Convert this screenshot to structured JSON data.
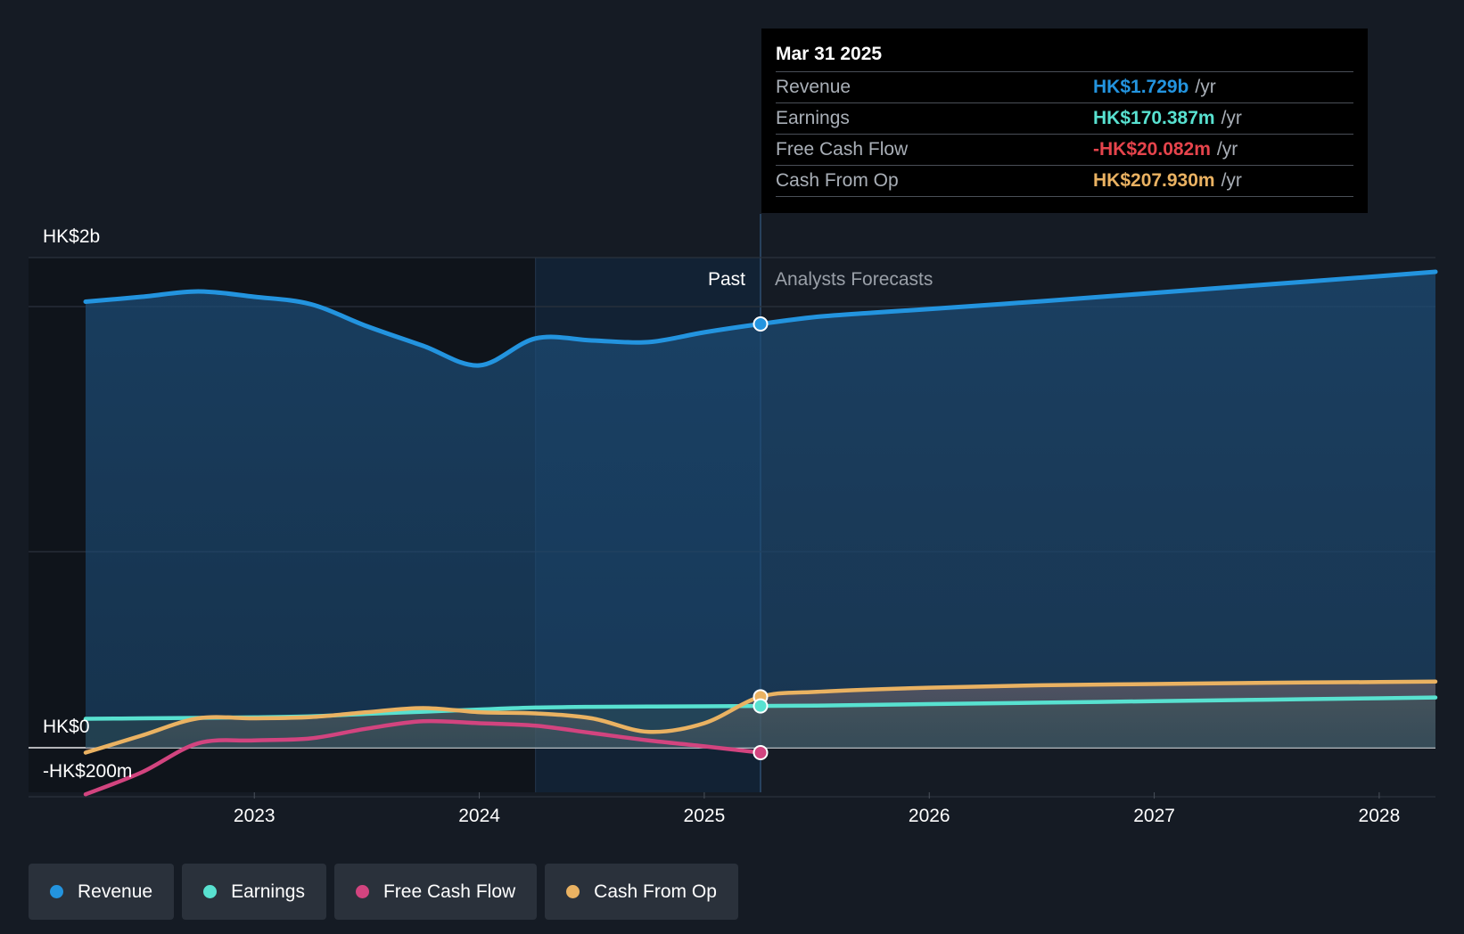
{
  "chart_data": {
    "type": "line",
    "x_unit": "year",
    "x_ticks": [
      "2023",
      "2024",
      "2025",
      "2026",
      "2027",
      "2028"
    ],
    "y_labels": {
      "top": "HK$2b",
      "zero": "HK$0",
      "bottom": "-HK$200m"
    },
    "y_gridlines_millions": [
      2000,
      1800,
      800,
      0,
      -200
    ],
    "y_range_millions": [
      -200,
      2200
    ],
    "regions": {
      "past_label": "Past",
      "forecast_label": "Analysts Forecasts"
    },
    "series": [
      {
        "name": "Revenue",
        "color": "#2394df",
        "points": [
          [
            2022.25,
            1820
          ],
          [
            2022.5,
            1840
          ],
          [
            2022.75,
            1862
          ],
          [
            2023.0,
            1840
          ],
          [
            2023.25,
            1810
          ],
          [
            2023.5,
            1720
          ],
          [
            2023.75,
            1640
          ],
          [
            2024.0,
            1560
          ],
          [
            2024.25,
            1670
          ],
          [
            2024.5,
            1662
          ],
          [
            2024.75,
            1655
          ],
          [
            2025.0,
            1695
          ],
          [
            2025.25,
            1729
          ],
          [
            2025.5,
            1758
          ],
          [
            2025.75,
            1775
          ],
          [
            2026.0,
            1790
          ],
          [
            2026.5,
            1822
          ],
          [
            2027.0,
            1856
          ],
          [
            2027.5,
            1890
          ],
          [
            2028.0,
            1924
          ],
          [
            2028.25,
            1942
          ]
        ]
      },
      {
        "name": "Earnings",
        "color": "#58e1d0",
        "points": [
          [
            2022.25,
            118
          ],
          [
            2022.5,
            120
          ],
          [
            2022.75,
            122
          ],
          [
            2023.0,
            124
          ],
          [
            2023.25,
            128
          ],
          [
            2023.5,
            138
          ],
          [
            2023.75,
            147
          ],
          [
            2024.0,
            156
          ],
          [
            2024.25,
            164
          ],
          [
            2024.5,
            167
          ],
          [
            2024.75,
            168
          ],
          [
            2025.0,
            169
          ],
          [
            2025.25,
            170.387
          ],
          [
            2025.5,
            172
          ],
          [
            2026.0,
            178
          ],
          [
            2026.5,
            184
          ],
          [
            2027.0,
            190
          ],
          [
            2027.5,
            196
          ],
          [
            2028.0,
            202
          ],
          [
            2028.25,
            205
          ]
        ]
      },
      {
        "name": "Free Cash Flow",
        "color": "#d2447f",
        "points": [
          [
            2022.25,
            -190
          ],
          [
            2022.5,
            -100
          ],
          [
            2022.75,
            18
          ],
          [
            2023.0,
            30
          ],
          [
            2023.25,
            38
          ],
          [
            2023.5,
            78
          ],
          [
            2023.75,
            108
          ],
          [
            2024.0,
            100
          ],
          [
            2024.25,
            90
          ],
          [
            2024.5,
            60
          ],
          [
            2024.75,
            30
          ],
          [
            2025.0,
            6
          ],
          [
            2025.25,
            -20.082
          ]
        ]
      },
      {
        "name": "Cash From Op",
        "color": "#eab262",
        "points": [
          [
            2022.25,
            -20
          ],
          [
            2022.5,
            50
          ],
          [
            2022.75,
            120
          ],
          [
            2023.0,
            120
          ],
          [
            2023.25,
            125
          ],
          [
            2023.5,
            145
          ],
          [
            2023.75,
            162
          ],
          [
            2024.0,
            145
          ],
          [
            2024.25,
            140
          ],
          [
            2024.5,
            120
          ],
          [
            2024.75,
            65
          ],
          [
            2025.0,
            100
          ],
          [
            2025.25,
            207.93
          ],
          [
            2025.5,
            228
          ],
          [
            2026.0,
            245
          ],
          [
            2026.5,
            255
          ],
          [
            2027.0,
            260
          ],
          [
            2027.5,
            265
          ],
          [
            2028.0,
            268
          ],
          [
            2028.25,
            270
          ]
        ]
      }
    ],
    "highlight_date": 2025.25,
    "shaded_past_range": [
      2024.25,
      2025.25
    ]
  },
  "tooltip": {
    "date": "Mar 31 2025",
    "unit": "/yr",
    "rows": [
      {
        "name": "Revenue",
        "value": "HK$1.729b",
        "color": "#2394df"
      },
      {
        "name": "Earnings",
        "value": "HK$170.387m",
        "color": "#58e1d0"
      },
      {
        "name": "Free Cash Flow",
        "value": "-HK$20.082m",
        "color": "#e6444c"
      },
      {
        "name": "Cash From Op",
        "value": "HK$207.930m",
        "color": "#eab262"
      }
    ]
  },
  "legend": [
    {
      "label": "Revenue",
      "color": "#2394df"
    },
    {
      "label": "Earnings",
      "color": "#58e1d0"
    },
    {
      "label": "Free Cash Flow",
      "color": "#d2447f"
    },
    {
      "label": "Cash From Op",
      "color": "#eab262"
    }
  ]
}
